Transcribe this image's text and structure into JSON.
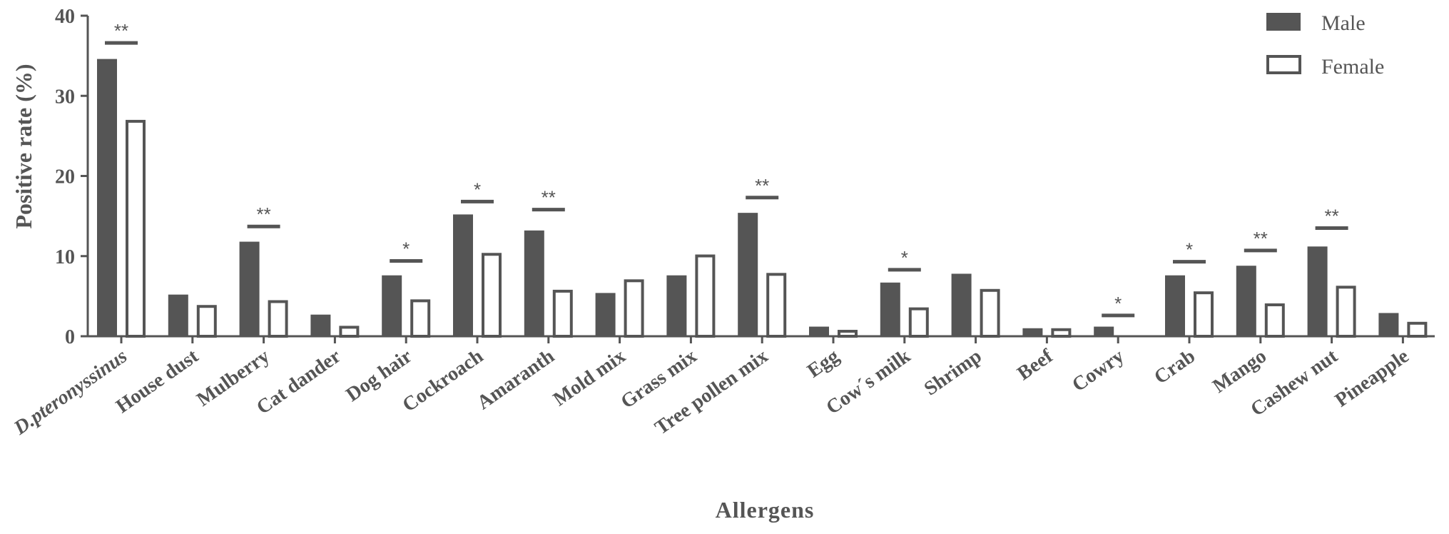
{
  "chart_data": {
    "type": "bar",
    "xlabel": "Allergens",
    "ylabel": "Positive rate (%)",
    "ylim": [
      0,
      40
    ],
    "yticks": [
      0,
      10,
      20,
      30,
      40
    ],
    "legend_position": "top-right",
    "categories": [
      "D.pteronyssinus",
      "House dust",
      "Mulberry",
      "Cat dander",
      "Dog hair",
      "Cockroach",
      "Amaranth",
      "Mold mix",
      "Grass mix",
      "Tree pollen mix",
      "Egg",
      "Cow´s milk",
      "Shrimp",
      "Beef",
      "Cowry",
      "Crab",
      "Mango",
      "Cashew nut",
      "Pineapple"
    ],
    "series": [
      {
        "name": "Male",
        "color": "#555555",
        "fill": "solid",
        "values": [
          34.6,
          5.2,
          11.8,
          2.7,
          7.6,
          15.2,
          13.2,
          5.4,
          7.6,
          15.4,
          1.2,
          6.7,
          7.8,
          1.0,
          1.2,
          7.6,
          8.8,
          11.2,
          2.9
        ]
      },
      {
        "name": "Female",
        "color": "#ffffff",
        "fill": "hollow",
        "values": [
          27.0,
          3.9,
          4.5,
          1.3,
          4.6,
          10.4,
          5.8,
          7.1,
          10.2,
          7.9,
          0.8,
          3.6,
          5.9,
          1.0,
          0.0,
          5.6,
          4.1,
          6.3,
          1.8
        ]
      }
    ],
    "significance": [
      "**",
      "",
      "**",
      "",
      "*",
      "*",
      "**",
      "",
      "",
      "**",
      "",
      "*",
      "",
      "",
      "*",
      "*",
      "**",
      "**",
      ""
    ],
    "significance_bar_level": [
      36.6,
      null,
      13.7,
      null,
      9.4,
      16.8,
      15.8,
      null,
      null,
      17.3,
      null,
      8.3,
      null,
      null,
      2.6,
      9.3,
      10.7,
      13.5,
      null
    ]
  }
}
